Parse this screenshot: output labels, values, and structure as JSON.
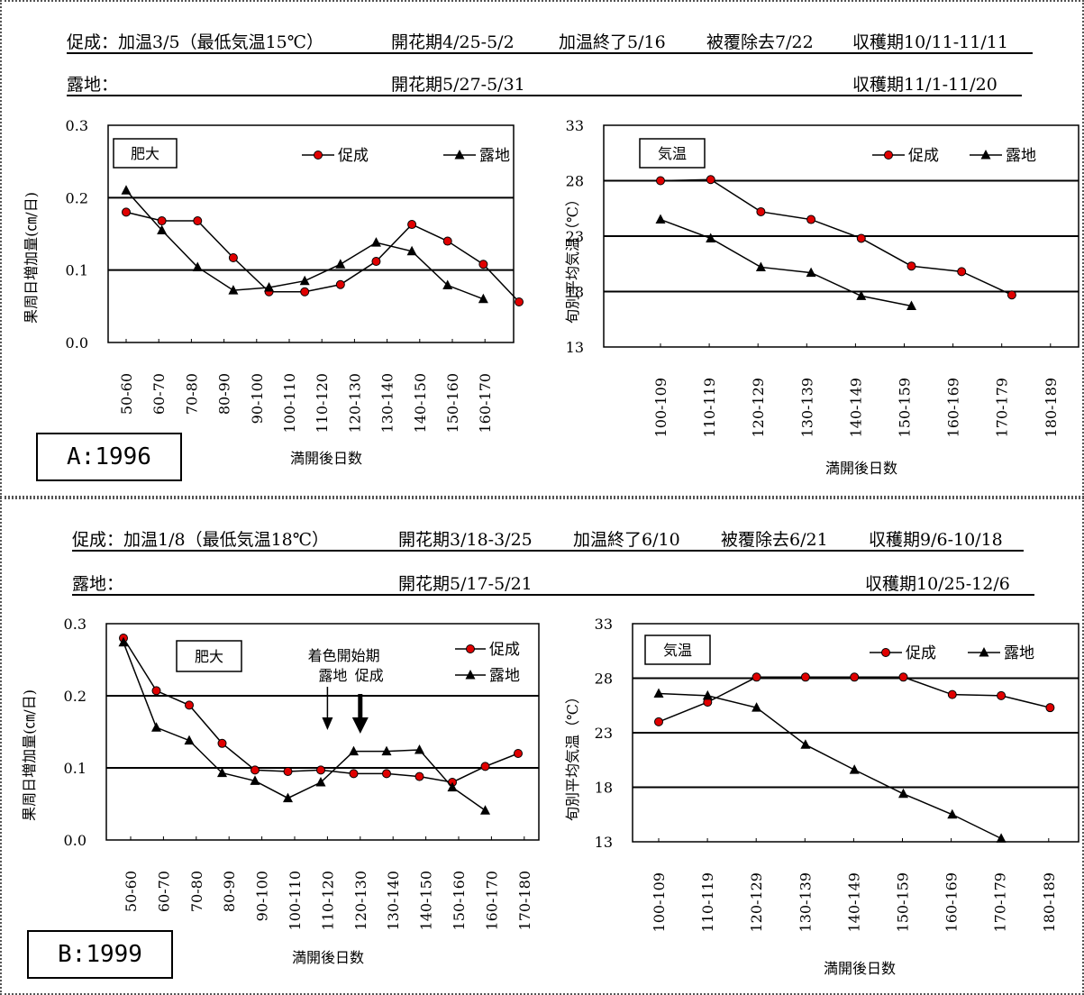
{
  "panels": [
    {
      "id": "A",
      "tag": "A:1996",
      "info": {
        "r1_label": "促成：加温3/5（最低気温15℃）",
        "r1_flower": "開花期4/25-5/2",
        "r1_heat_end": "加温終了5/16",
        "r1_cover": "被覆除去7/22",
        "r1_harvest": "収穫期10/11-11/11",
        "r2_label": "露地：",
        "r2_flower": "開花期5/27-5/31",
        "r2_harvest": "収穫期11/1-11/20"
      }
    },
    {
      "id": "B",
      "tag": "B:1999",
      "info": {
        "r1_label": "促成：加温1/8（最低気温18℃）",
        "r1_flower": "開花期3/18-3/25",
        "r1_heat_end": "加温終了6/10",
        "r1_cover": "被覆除去6/21",
        "r1_harvest": "収穫期9/6-10/18",
        "r2_label": "露地：",
        "r2_flower": "開花期5/17-5/21",
        "r2_harvest": "収穫期10/25-12/6"
      }
    }
  ],
  "colors": {
    "forcing": "#e00000",
    "open": "#000000"
  },
  "chart_data": [
    {
      "type": "line",
      "panel": "A",
      "box_label": "肥大",
      "xlabel": "満開後日数",
      "ylabel": "果周日増加量(㎝/日)",
      "ylim": [
        0,
        0.3
      ],
      "yticks": [
        "0.0",
        "0.1",
        "0.2",
        "0.3"
      ],
      "grid_y": [
        0.1,
        0.2
      ],
      "legend_position": "top-right",
      "categories": [
        "50-60",
        "60-70",
        "70-80",
        "80-90",
        "90-100",
        "100-110",
        "110-120",
        "120-130",
        "130-140",
        "140-150",
        "150-160",
        "160-170"
      ],
      "series": [
        {
          "name": "促成",
          "marker": "circle",
          "values": [
            0.18,
            0.168,
            0.168,
            0.117,
            0.07,
            0.07,
            0.08,
            0.112,
            0.163,
            0.14,
            0.108,
            0.056
          ]
        },
        {
          "name": "露地",
          "marker": "triangle",
          "values": [
            0.21,
            0.155,
            0.104,
            0.072,
            0.076,
            0.085,
            0.108,
            0.138,
            0.126,
            0.079,
            0.06,
            null
          ]
        }
      ]
    },
    {
      "type": "line",
      "panel": "A",
      "box_label": "気温",
      "xlabel": "満開後日数",
      "ylabel": "旬別平均気温（℃）",
      "ylim": [
        13,
        33
      ],
      "yticks": [
        "13",
        "18",
        "23",
        "28",
        "33"
      ],
      "grid_y": [
        18,
        23,
        28
      ],
      "legend_position": "top-right",
      "categories": [
        "100-109",
        "110-119",
        "120-129",
        "130-139",
        "140-149",
        "150-159",
        "160-169",
        "170-179",
        "180-189"
      ],
      "series": [
        {
          "name": "促成",
          "marker": "circle",
          "values": [
            28.0,
            28.1,
            25.2,
            24.5,
            22.8,
            20.3,
            19.8,
            17.7,
            null
          ]
        },
        {
          "name": "露地",
          "marker": "triangle",
          "values": [
            24.5,
            22.8,
            20.2,
            19.7,
            17.6,
            16.7,
            null,
            null,
            null
          ]
        }
      ]
    },
    {
      "type": "line",
      "panel": "B",
      "box_label": "肥大",
      "xlabel": "満開後日数",
      "ylabel": "果周日増加量(㎝/日)",
      "ylim": [
        0,
        0.3
      ],
      "yticks": [
        "0.0",
        "0.1",
        "0.2",
        "0.3"
      ],
      "grid_y": [
        0.1,
        0.2
      ],
      "legend_position": "top-right",
      "annotation": {
        "title": "着色開始期",
        "open": "露地",
        "forcing": "促成",
        "open_category": "110-120",
        "forcing_category": "120-130"
      },
      "categories": [
        "50-60",
        "60-70",
        "70-80",
        "80-90",
        "90-100",
        "100-110",
        "110-120",
        "120-130",
        "130-140",
        "140-150",
        "150-160",
        "160-170",
        "170-180"
      ],
      "series": [
        {
          "name": "促成",
          "marker": "circle",
          "values": [
            0.28,
            0.207,
            0.187,
            0.134,
            0.097,
            0.095,
            0.097,
            0.092,
            0.092,
            0.088,
            0.08,
            0.102,
            0.12
          ]
        },
        {
          "name": "露地",
          "marker": "triangle",
          "values": [
            0.274,
            0.156,
            0.138,
            0.093,
            0.082,
            0.058,
            0.08,
            0.123,
            0.123,
            0.125,
            0.073,
            0.041,
            null
          ]
        }
      ]
    },
    {
      "type": "line",
      "panel": "B",
      "box_label": "気温",
      "xlabel": "満開後日数",
      "ylabel": "旬別平均気温（℃）",
      "ylim": [
        13,
        33
      ],
      "yticks": [
        "13",
        "18",
        "23",
        "28",
        "33"
      ],
      "grid_y": [
        18,
        23,
        28
      ],
      "legend_position": "top-right",
      "categories": [
        "100-109",
        "110-119",
        "120-129",
        "130-139",
        "140-149",
        "150-159",
        "160-169",
        "170-179",
        "180-189"
      ],
      "series": [
        {
          "name": "促成",
          "marker": "circle",
          "values": [
            24.0,
            25.8,
            28.1,
            28.1,
            28.1,
            28.1,
            26.5,
            26.4,
            25.3
          ]
        },
        {
          "name": "露地",
          "marker": "triangle",
          "values": [
            26.6,
            26.4,
            25.3,
            21.9,
            19.6,
            17.4,
            15.5,
            13.3,
            null
          ]
        }
      ]
    }
  ]
}
